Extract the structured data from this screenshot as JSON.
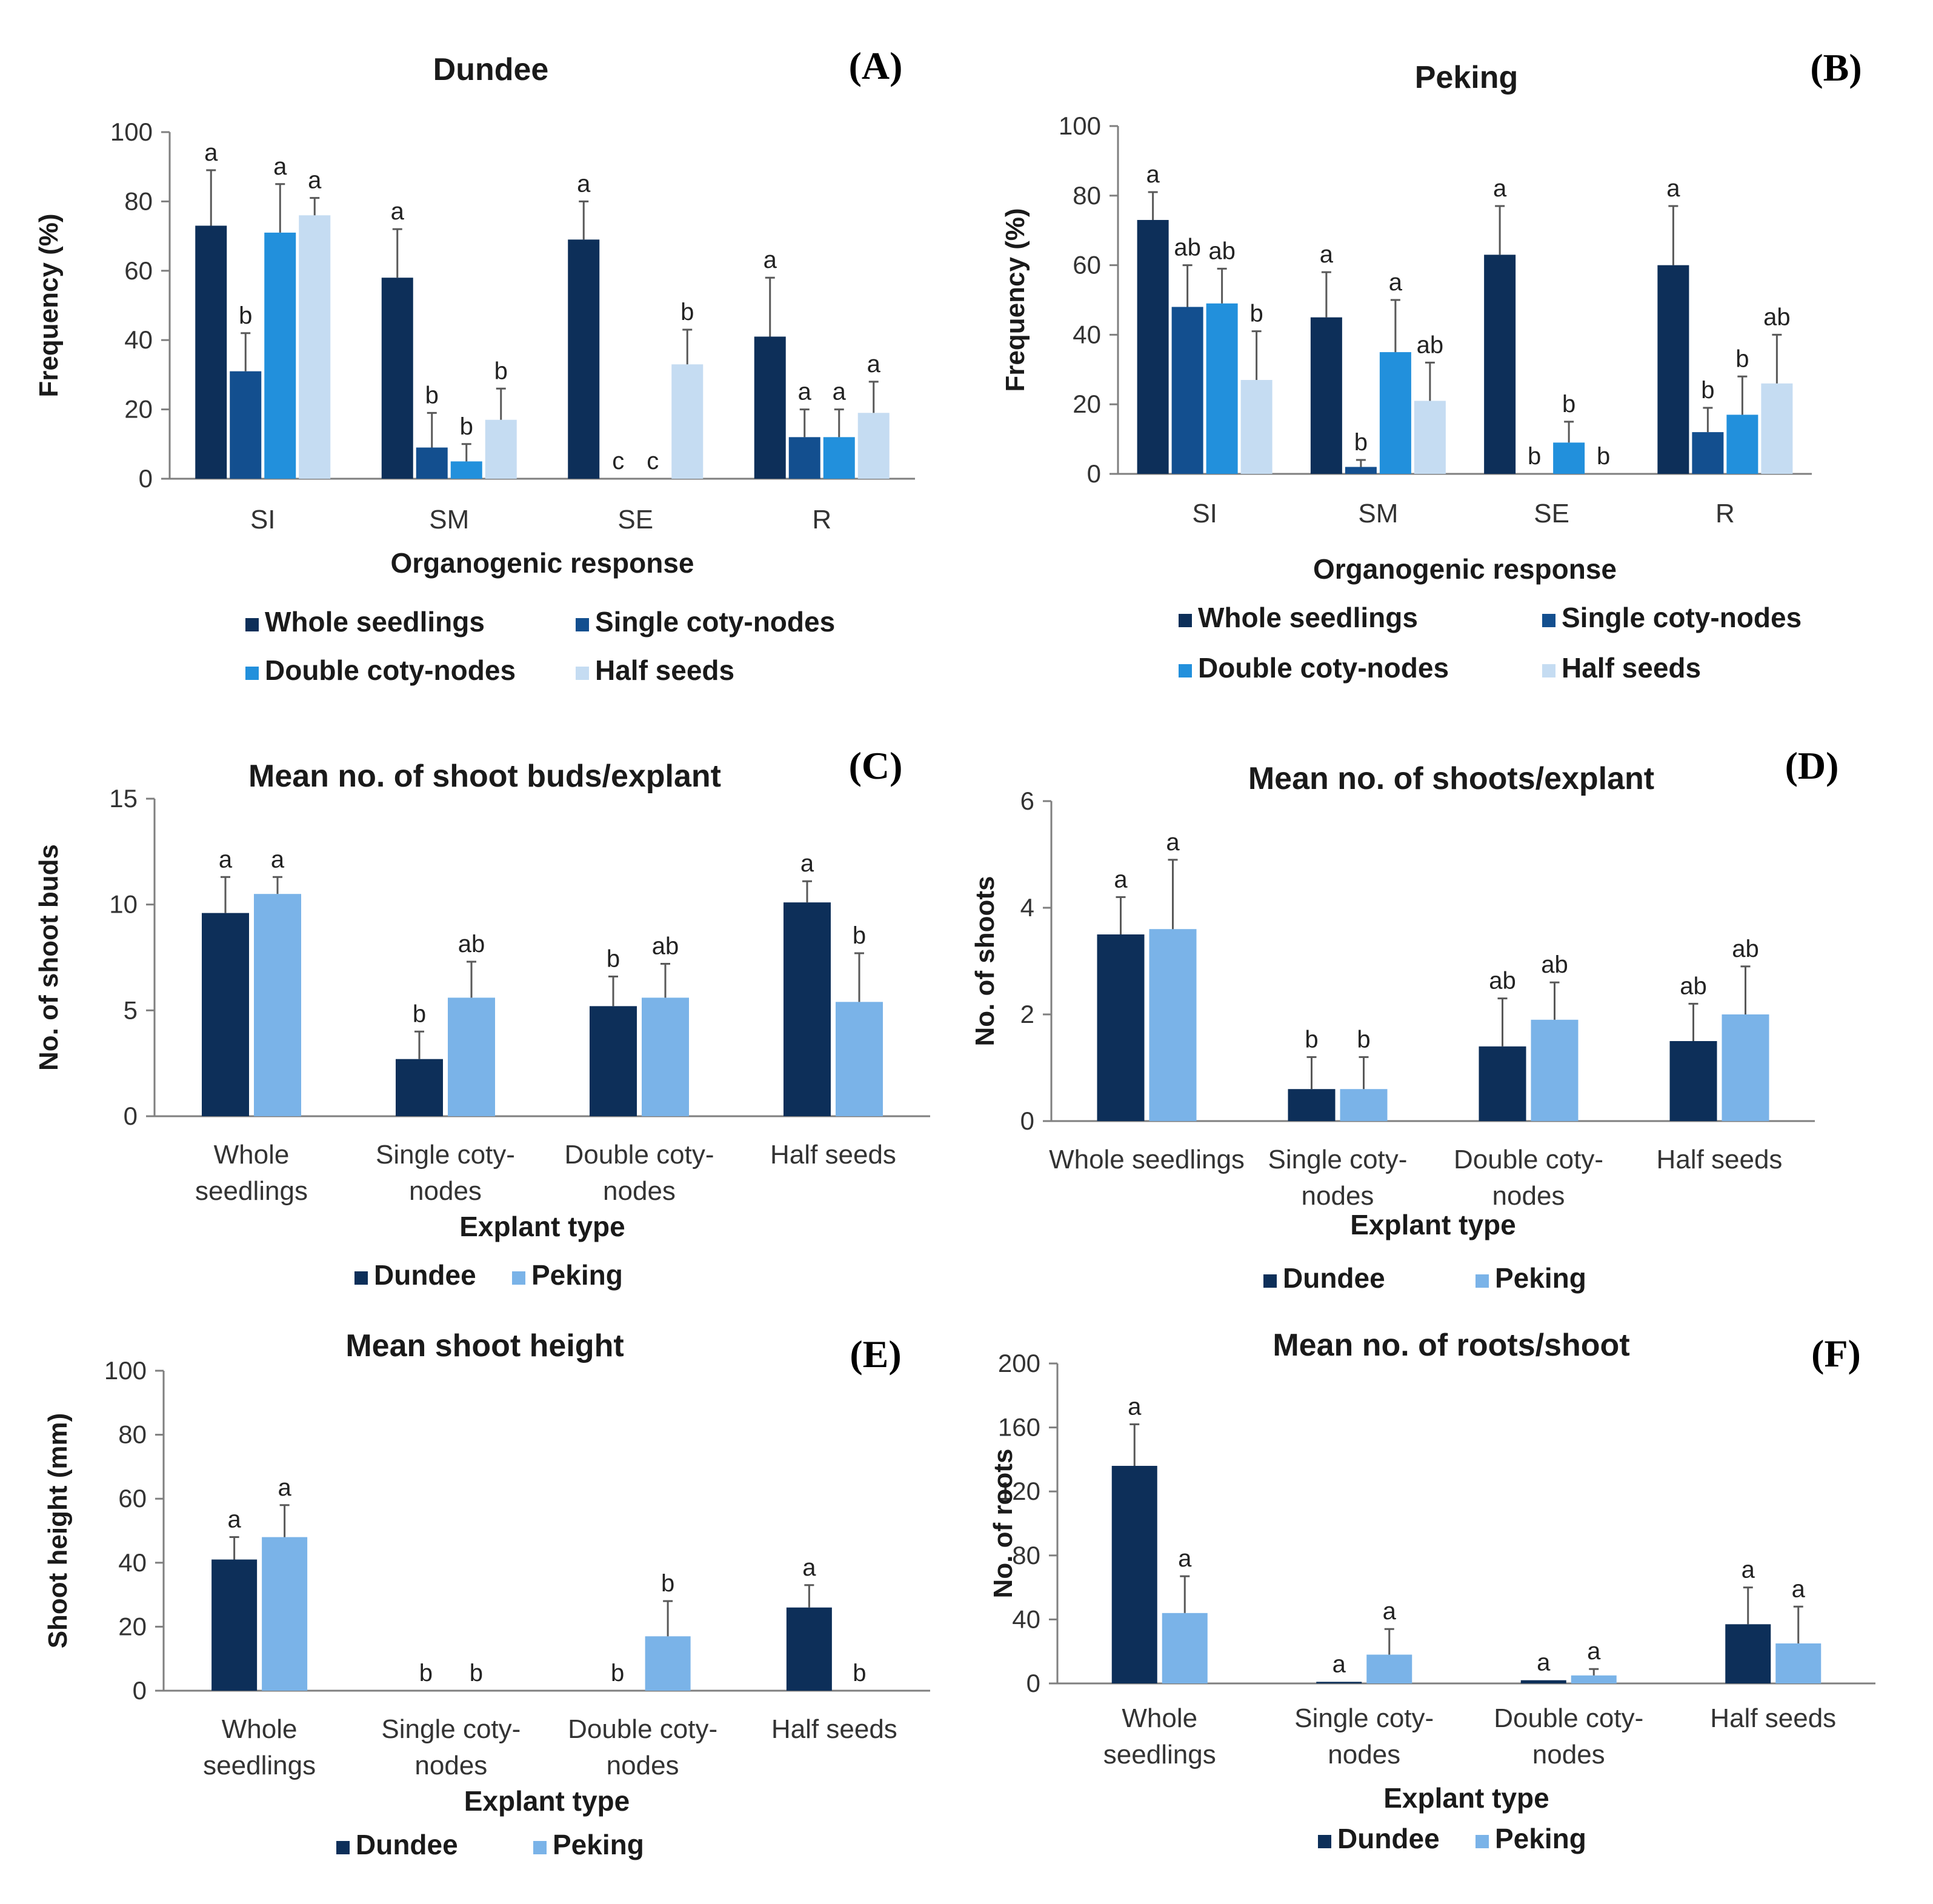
{
  "chart_data": [
    {
      "panel": "(A)",
      "type": "bar",
      "title": "Dundee",
      "ylabel": "Frequency (%)",
      "xlabel": "Organogenic response",
      "ylim": [
        0,
        100
      ],
      "yticks": [
        "0",
        "20",
        "40",
        "60",
        "80",
        "100"
      ],
      "categories": [
        "SI",
        "SM",
        "SE",
        "R"
      ],
      "series": [
        {
          "name": "Whole seedlings",
          "color": "#0d2f59",
          "values": [
            73,
            58,
            69,
            41
          ],
          "errors": [
            16,
            14,
            11,
            17
          ],
          "letters": [
            "a",
            "a",
            "a",
            "a"
          ]
        },
        {
          "name": "Single coty-nodes",
          "color": "#134f8f",
          "values": [
            31,
            9,
            0,
            12
          ],
          "errors": [
            11,
            10,
            0,
            8
          ],
          "letters": [
            "b",
            "b",
            "c",
            "a"
          ]
        },
        {
          "name": "Double coty-nodes",
          "color": "#2290dc",
          "values": [
            71,
            5,
            0,
            12
          ],
          "errors": [
            14,
            5,
            0,
            8
          ],
          "letters": [
            "a",
            "b",
            "c",
            "a"
          ]
        },
        {
          "name": "Half seeds",
          "color": "#c5dcf2",
          "values": [
            76,
            17,
            33,
            19
          ],
          "errors": [
            5,
            9,
            10,
            9
          ],
          "letters": [
            "a",
            "b",
            "b",
            "a"
          ]
        }
      ]
    },
    {
      "panel": "(B)",
      "type": "bar",
      "title": "Peking",
      "ylabel": "Frequency (%)",
      "xlabel": "Organogenic response",
      "ylim": [
        0,
        100
      ],
      "yticks": [
        "0",
        "20",
        "40",
        "60",
        "80",
        "100"
      ],
      "categories": [
        "SI",
        "SM",
        "SE",
        "R"
      ],
      "series": [
        {
          "name": "Whole seedlings",
          "color": "#0d2f59",
          "values": [
            73,
            45,
            63,
            60
          ],
          "errors": [
            8,
            13,
            14,
            17
          ],
          "letters": [
            "a",
            "a",
            "a",
            "a"
          ]
        },
        {
          "name": "Single coty-nodes",
          "color": "#134f8f",
          "values": [
            48,
            2,
            0,
            12
          ],
          "errors": [
            12,
            2,
            0,
            7
          ],
          "letters": [
            "ab",
            "b",
            "b",
            "b"
          ]
        },
        {
          "name": "Double coty-nodes",
          "color": "#2290dc",
          "values": [
            49,
            35,
            9,
            17
          ],
          "errors": [
            10,
            15,
            6,
            11
          ],
          "letters": [
            "ab",
            "a",
            "b",
            "b"
          ]
        },
        {
          "name": "Half seeds",
          "color": "#c5dcf2",
          "values": [
            27,
            21,
            0,
            26
          ],
          "errors": [
            14,
            11,
            0,
            14
          ],
          "letters": [
            "b",
            "ab",
            "b",
            "ab"
          ]
        }
      ]
    },
    {
      "panel": "(C)",
      "type": "bar",
      "title": "Mean no. of shoot buds/explant",
      "ylabel": "No. of shoot buds",
      "xlabel": "Explant type",
      "ylim": [
        0,
        15
      ],
      "yticks": [
        "0",
        "5",
        "10",
        "15"
      ],
      "categories": [
        [
          "Whole",
          "seedlings"
        ],
        [
          "Single coty-",
          "nodes"
        ],
        [
          "Double coty-",
          "nodes"
        ],
        [
          "Half seeds"
        ]
      ],
      "series": [
        {
          "name": "Dundee",
          "color": "#0d2f59",
          "values": [
            9.6,
            2.7,
            5.2,
            10.1
          ],
          "errors": [
            1.7,
            1.3,
            1.4,
            1.0
          ],
          "letters": [
            "a",
            "b",
            "b",
            "a"
          ]
        },
        {
          "name": "Peking",
          "color": "#7ab3e8",
          "values": [
            10.5,
            5.6,
            5.6,
            5.4
          ],
          "errors": [
            0.8,
            1.7,
            1.6,
            2.3
          ],
          "letters": [
            "a",
            "ab",
            "ab",
            "b"
          ]
        }
      ]
    },
    {
      "panel": "(D)",
      "type": "bar",
      "title": "Mean no. of shoots/explant",
      "ylabel": "No. of shoots",
      "xlabel": "Explant type",
      "ylim": [
        0,
        6
      ],
      "yticks": [
        "0",
        "2",
        "4",
        "6"
      ],
      "categories": [
        [
          "Whole seedlings"
        ],
        [
          "Single coty-",
          "nodes"
        ],
        [
          "Double coty-",
          "nodes"
        ],
        [
          "Half seeds"
        ]
      ],
      "series": [
        {
          "name": "Dundee",
          "color": "#0d2f59",
          "values": [
            3.5,
            0.6,
            1.4,
            1.5
          ],
          "errors": [
            0.7,
            0.6,
            0.9,
            0.7
          ],
          "letters": [
            "a",
            "b",
            "ab",
            "ab"
          ]
        },
        {
          "name": "Peking",
          "color": "#7ab3e8",
          "values": [
            3.6,
            0.6,
            1.9,
            2.0
          ],
          "errors": [
            1.3,
            0.6,
            0.7,
            0.9
          ],
          "letters": [
            "a",
            "b",
            "ab",
            "ab"
          ]
        }
      ]
    },
    {
      "panel": "(E)",
      "type": "bar",
      "title": "Mean shoot height",
      "ylabel": "Shoot height (mm)",
      "xlabel": "Explant type",
      "ylim": [
        0,
        100
      ],
      "yticks": [
        "0",
        "20",
        "40",
        "60",
        "80",
        "100"
      ],
      "categories": [
        [
          "Whole",
          "seedlings"
        ],
        [
          "Single coty-",
          "nodes"
        ],
        [
          "Double coty-",
          "nodes"
        ],
        [
          "Half seeds"
        ]
      ],
      "series": [
        {
          "name": "Dundee",
          "color": "#0d2f59",
          "values": [
            41,
            0,
            0,
            26
          ],
          "errors": [
            7,
            0,
            0,
            7
          ],
          "letters": [
            "a",
            "b",
            "b",
            "a"
          ]
        },
        {
          "name": "Peking",
          "color": "#7ab3e8",
          "values": [
            48,
            0,
            17,
            0
          ],
          "errors": [
            10,
            0,
            11,
            0
          ],
          "letters": [
            "a",
            "b",
            "b",
            "b"
          ]
        }
      ]
    },
    {
      "panel": "(F)",
      "type": "bar",
      "title": "Mean no. of roots/shoot",
      "ylabel": "No. of roots",
      "xlabel": "Explant type",
      "ylim": [
        0,
        200
      ],
      "yticks": [
        "0",
        "40",
        "80",
        "120",
        "160",
        "200"
      ],
      "categories": [
        [
          "Whole",
          "seedlings"
        ],
        [
          "Single coty-",
          "nodes"
        ],
        [
          "Double coty-",
          "nodes"
        ],
        [
          "Half seeds"
        ]
      ],
      "series": [
        {
          "name": "Dundee",
          "color": "#0d2f59",
          "values": [
            136,
            1,
            2,
            37
          ],
          "errors": [
            26,
            0,
            0,
            23
          ],
          "letters": [
            "a",
            "a",
            "a",
            "a"
          ]
        },
        {
          "name": "Peking",
          "color": "#7ab3e8",
          "values": [
            44,
            18,
            5,
            25
          ],
          "errors": [
            23,
            16,
            4,
            23
          ],
          "letters": [
            "a",
            "a",
            "a",
            "a"
          ]
        }
      ]
    }
  ]
}
